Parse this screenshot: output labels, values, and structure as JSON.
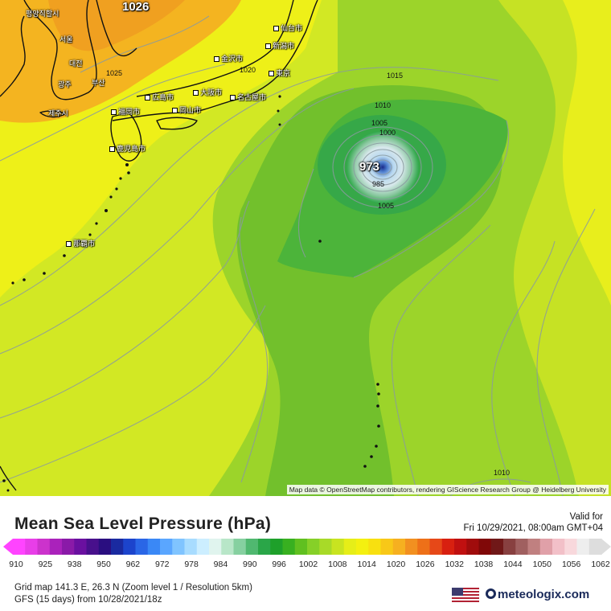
{
  "map": {
    "attribution": "Map data © OpenStreetMap contributors, rendering GIScience Research Group @ Heidelberg University",
    "cities": [
      {
        "id": "pyongyang",
        "label": "평양직할시"
      },
      {
        "id": "seoul",
        "label": "서울"
      },
      {
        "id": "daejeon",
        "label": "대전"
      },
      {
        "id": "gwangju",
        "label": "광주"
      },
      {
        "id": "busan",
        "label": "부산"
      },
      {
        "id": "jeju",
        "label": "제주시"
      },
      {
        "id": "fukuoka",
        "label": "福岡市"
      },
      {
        "id": "hiroshima",
        "label": "広島市"
      },
      {
        "id": "okayama",
        "label": "岡山市"
      },
      {
        "id": "osaka",
        "label": "大阪市"
      },
      {
        "id": "nagoya",
        "label": "名古屋市"
      },
      {
        "id": "kanazawa",
        "label": "金沢市"
      },
      {
        "id": "niigata",
        "label": "新潟市"
      },
      {
        "id": "sendai",
        "label": "仙台市"
      },
      {
        "id": "tokyo",
        "label": "東京"
      },
      {
        "id": "kagoshima",
        "label": "鹿児島市"
      },
      {
        "id": "naha",
        "label": "那覇市"
      }
    ],
    "high_label": "1026",
    "low_label": "973",
    "isobar_labels": [
      "1025",
      "1020",
      "1015",
      "1010",
      "1005",
      "1000",
      "985",
      "1005",
      "1010"
    ]
  },
  "legend": {
    "title": "Mean Sea Level Pressure (hPa)",
    "valid_label": "Valid for",
    "valid_time": "Fri 10/29/2021, 08:00am GMT+04",
    "ticks": [
      "910",
      "925",
      "938",
      "950",
      "962",
      "972",
      "978",
      "984",
      "990",
      "996",
      "1002",
      "1008",
      "1014",
      "1020",
      "1026",
      "1032",
      "1038",
      "1044",
      "1050",
      "1056",
      "1062"
    ],
    "colors": [
      "#ff44ff",
      "#e83ee8",
      "#cc33cc",
      "#aa22bb",
      "#8a1aa8",
      "#6a10a0",
      "#48108c",
      "#2a0e80",
      "#1a2aa0",
      "#1c44cc",
      "#2a66e6",
      "#3a88f6",
      "#5aa6ff",
      "#80c4ff",
      "#a8dcff",
      "#cceeff",
      "#e0f4ee",
      "#b8e6c8",
      "#86d0a0",
      "#50b870",
      "#2aa648",
      "#1ea02a",
      "#38b020",
      "#60c020",
      "#86d028",
      "#a8da28",
      "#c8e420",
      "#e6ee18",
      "#f4f010",
      "#f8e010",
      "#f8c818",
      "#f6b020",
      "#f29020",
      "#ee7018",
      "#e64818",
      "#d82010",
      "#c01010",
      "#a00c0c",
      "#800808",
      "#701818",
      "#884040",
      "#a06060",
      "#c08080",
      "#e0a0a8",
      "#f2c0c8",
      "#f8d8dc",
      "#eeeeee",
      "#dddddd"
    ],
    "grid_info": "Grid map 141.3 E, 26.3 N (Zoom level 1 / Resolution 5km)",
    "model_info": "GFS (15 days) from  10/28/2021/18z",
    "brand": "meteologix.com",
    "flag_icon": "us-flag-icon",
    "logo_icon": "meteologix-gear-icon"
  }
}
